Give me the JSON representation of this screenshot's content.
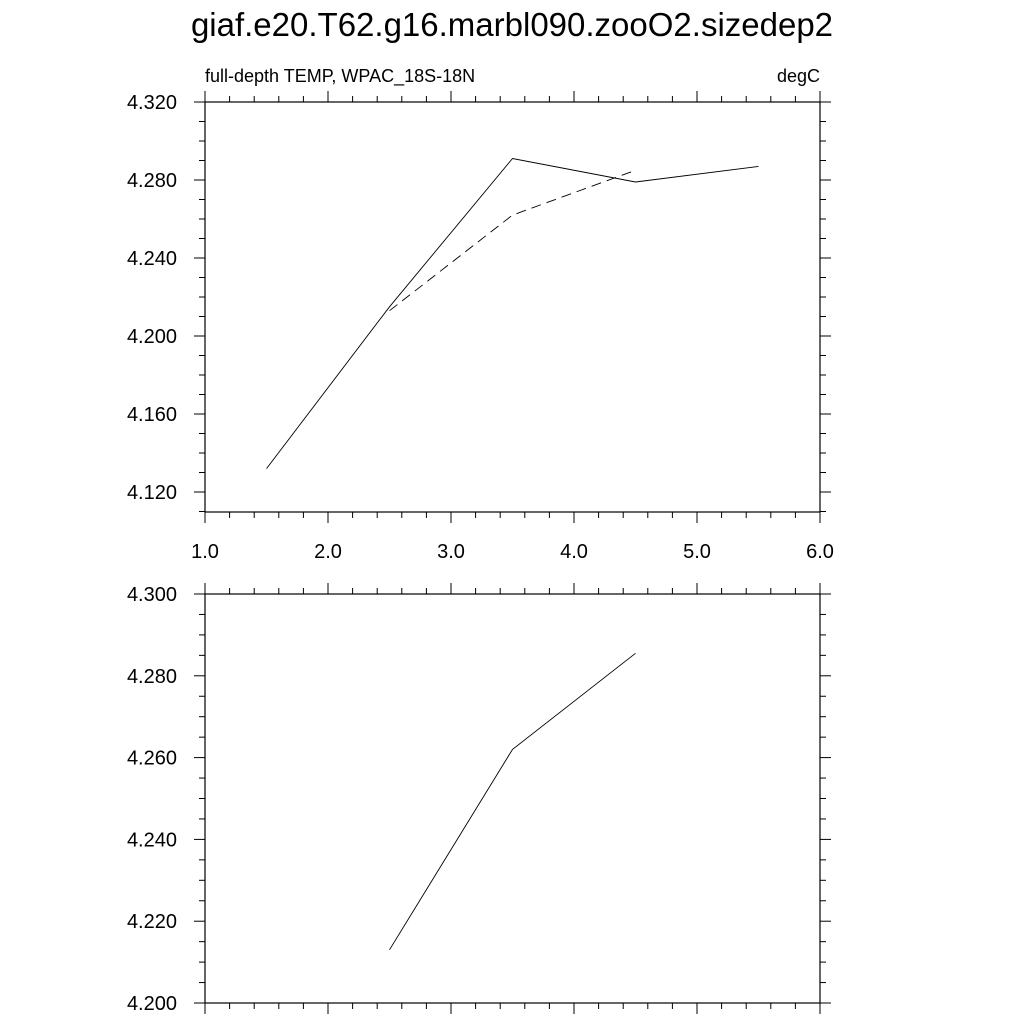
{
  "page": {
    "title": "giaf.e20.T62.g16.marbl090.zooO2.sizedep2"
  },
  "chart_data": [
    {
      "type": "line",
      "subtitle_left": "full-depth TEMP, WPAC_18S-18N",
      "subtitle_right": "degC",
      "xlim": [
        1.0,
        6.0
      ],
      "ylim": [
        4.11,
        4.32
      ],
      "xticks": [
        "1.0",
        "2.0",
        "3.0",
        "4.0",
        "5.0",
        "6.0"
      ],
      "yticks": [
        "4.120",
        "4.160",
        "4.200",
        "4.240",
        "4.280",
        "4.320"
      ],
      "series": [
        {
          "style": "solid",
          "x": [
            1.5,
            2.5,
            3.5,
            4.5,
            5.5
          ],
          "y": [
            4.132,
            4.215,
            4.291,
            4.279,
            4.287
          ]
        },
        {
          "style": "dashed",
          "x": [
            2.5,
            3.5,
            4.5
          ],
          "y": [
            4.213,
            4.262,
            4.285
          ]
        }
      ]
    },
    {
      "type": "line",
      "xlim": [
        1.0,
        6.0
      ],
      "ylim": [
        4.2,
        4.3
      ],
      "yticks": [
        "4.200",
        "4.220",
        "4.240",
        "4.260",
        "4.280",
        "4.300"
      ],
      "series": [
        {
          "style": "solid",
          "x": [
            2.5,
            3.5,
            4.5
          ],
          "y": [
            4.213,
            4.262,
            4.2855
          ]
        }
      ]
    }
  ]
}
